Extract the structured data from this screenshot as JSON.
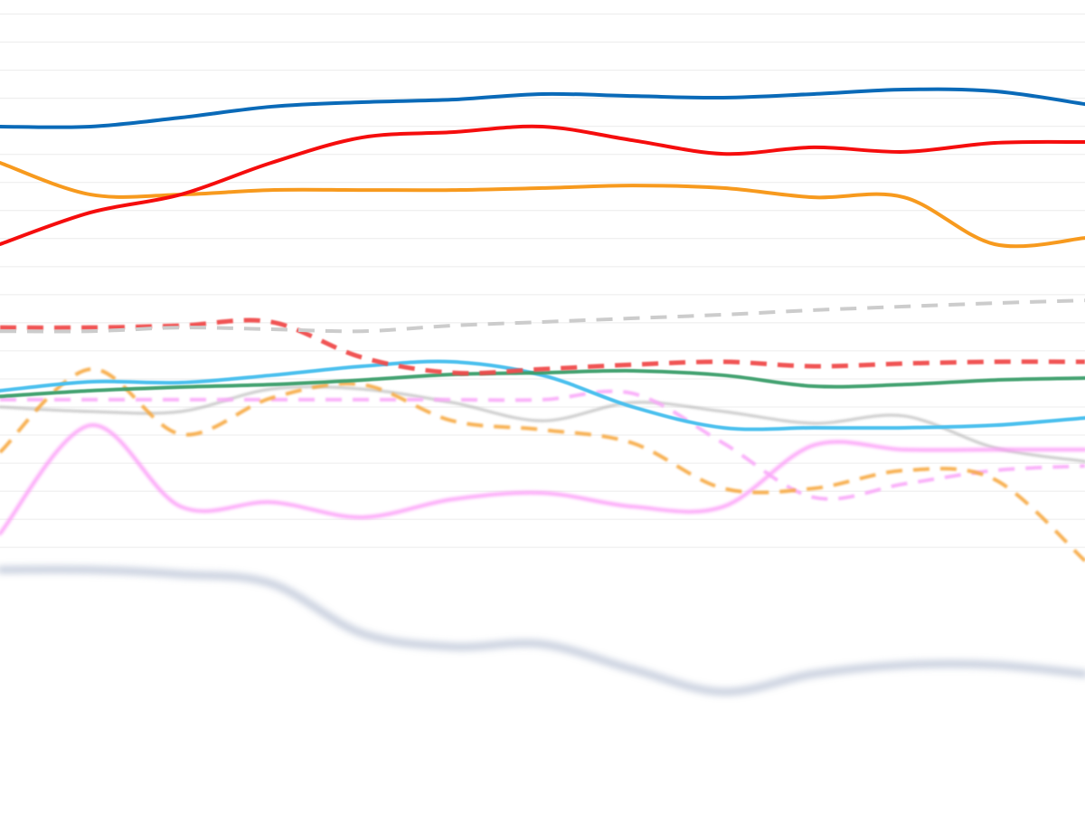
{
  "chart_data": {
    "type": "line",
    "x": [
      0,
      1,
      2,
      3,
      4,
      5,
      6,
      7,
      8,
      9,
      10,
      11,
      12
    ],
    "xlim": [
      0,
      12
    ],
    "ylim": [
      -0.5,
      28.5
    ],
    "yticks": [
      9,
      10,
      11,
      12,
      13,
      14,
      15,
      16,
      17,
      18,
      19,
      20,
      21,
      22,
      23,
      24,
      25,
      26,
      27,
      28
    ],
    "grid": true,
    "series": [
      {
        "color": "#bbbbbb",
        "width": 3,
        "dash": false,
        "blur": 1.2,
        "opacity": 0.8,
        "values": [
          14.0,
          13.84,
          13.84,
          14.64,
          14.64,
          14.16,
          13.51,
          14.16,
          13.84,
          13.42,
          13.68,
          12.55,
          12.06
        ]
      },
      {
        "color": "#8898b8",
        "width": 7,
        "dash": false,
        "blur": 4,
        "opacity": 0.55,
        "values": [
          8.2,
          8.2,
          8.04,
          7.71,
          5.94,
          5.46,
          5.55,
          4.65,
          3.85,
          4.49,
          4.81,
          4.81,
          4.49
        ]
      },
      {
        "color": "#fc9cf8",
        "width": 4,
        "dash": false,
        "blur": 1.5,
        "opacity": 0.9,
        "values": [
          9.49,
          13.35,
          10.45,
          10.61,
          10.07,
          10.71,
          10.94,
          10.45,
          10.45,
          12.64,
          12.48,
          12.48,
          12.48
        ]
      },
      {
        "color": "#f9a8f9",
        "width": 4,
        "dash": true,
        "blur": 1,
        "opacity": 0.9,
        "values": [
          14.26,
          14.26,
          14.26,
          14.26,
          14.26,
          14.26,
          14.26,
          14.48,
          12.71,
          10.78,
          11.26,
          11.74,
          11.9
        ]
      },
      {
        "color": "#f7a840",
        "width": 4,
        "dash": true,
        "blur": 1,
        "opacity": 0.9,
        "values": [
          12.39,
          15.35,
          13.03,
          14.32,
          14.8,
          13.51,
          13.19,
          12.71,
          11.1,
          11.1,
          11.74,
          11.42,
          8.52
        ]
      },
      {
        "color": "#4cc0ee",
        "width": 4,
        "dash": false,
        "blur": 0.6,
        "opacity": 1,
        "values": [
          14.58,
          14.9,
          14.87,
          15.13,
          15.45,
          15.61,
          15.13,
          14.0,
          13.26,
          13.26,
          13.26,
          13.35,
          13.61
        ]
      },
      {
        "color": "#3a9e6a",
        "width": 4,
        "dash": false,
        "blur": 0.4,
        "opacity": 0.95,
        "values": [
          14.38,
          14.58,
          14.71,
          14.8,
          14.96,
          15.16,
          15.22,
          15.29,
          15.13,
          14.74,
          14.8,
          14.96,
          15.03
        ]
      },
      {
        "color": "#f04b4b",
        "width": 5,
        "dash": true,
        "blur": 0.8,
        "opacity": 0.95,
        "values": [
          16.83,
          16.83,
          16.9,
          17.03,
          15.77,
          15.22,
          15.35,
          15.51,
          15.61,
          15.45,
          15.55,
          15.61,
          15.61
        ]
      },
      {
        "color": "#cccccc",
        "width": 4,
        "dash": true,
        "blur": 0,
        "opacity": 1,
        "values": [
          16.7,
          16.7,
          16.83,
          16.77,
          16.7,
          16.9,
          17.03,
          17.16,
          17.29,
          17.45,
          17.58,
          17.7,
          17.8
        ]
      },
      {
        "color": "#f79a1e",
        "width": 4,
        "dash": false,
        "blur": 0,
        "opacity": 1,
        "values": [
          22.7,
          21.57,
          21.57,
          21.73,
          21.73,
          21.73,
          21.8,
          21.89,
          21.8,
          21.47,
          21.47,
          19.8,
          20.02
        ]
      },
      {
        "color": "#f50d0d",
        "width": 4,
        "dash": false,
        "blur": 0,
        "opacity": 1,
        "values": [
          19.8,
          20.93,
          21.57,
          22.7,
          23.6,
          23.79,
          23.99,
          23.5,
          23.02,
          23.25,
          23.09,
          23.41,
          23.44
        ]
      },
      {
        "color": "#0a6ab8",
        "width": 4,
        "dash": false,
        "blur": 0,
        "opacity": 1,
        "values": [
          23.99,
          23.99,
          24.31,
          24.7,
          24.86,
          24.95,
          25.15,
          25.08,
          25.02,
          25.15,
          25.31,
          25.25,
          24.79
        ]
      }
    ]
  }
}
